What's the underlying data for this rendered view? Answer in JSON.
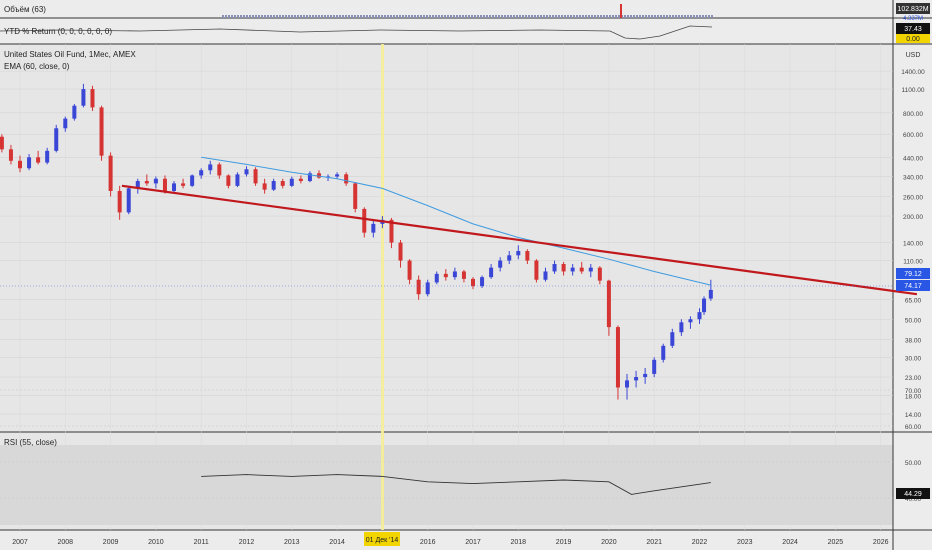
{
  "volume_pane": {
    "title": "Объём (63)",
    "value_label": "102.832M",
    "value_label_2": "4.337M"
  },
  "ytd_pane": {
    "title": "YTD % Return (0, 0, 0, 0, 0, 0)",
    "value_label": "37.43",
    "zero_label": "0.00"
  },
  "main_pane": {
    "title": "United States Oil Fund, 1Мес, AMEX",
    "indicator_label": "EMA (60, close, 0)",
    "currency": "USD",
    "price_label_ema": "79.12",
    "price_label_last": "74.17"
  },
  "rsi_pane": {
    "title": "RSI (55, close)",
    "value_label": "44.29"
  },
  "crosshair": {
    "date_label": "01 Дек '14"
  },
  "colors": {
    "up": "#3a46d6",
    "down": "#d63333",
    "trendline": "#c0181d",
    "ema": "#3f9be0",
    "rsi_line": "#333333",
    "highlight": "#fff59a",
    "badge_dark": "#111111",
    "badge_blue": "#2a56e6"
  },
  "chart_data": {
    "type": "candlestick",
    "xlabel": "",
    "ylabel": "USD",
    "y_scale": "log",
    "ylim": [
      11,
      1500
    ],
    "x_ticks": [
      "2007",
      "2008",
      "2009",
      "2010",
      "2011",
      "2012",
      "2013",
      "2014",
      "2016",
      "2017",
      "2018",
      "2019",
      "2020",
      "2021",
      "2022",
      "2023",
      "2024",
      "2025",
      "2026"
    ],
    "y_ticks": [
      "1400.00",
      "1100.00",
      "800.00",
      "600.00",
      "440.00",
      "340.00",
      "260.00",
      "200.00",
      "140.00",
      "110.00",
      "65.00",
      "50.00",
      "38.00",
      "30.00",
      "23.00",
      "18.00",
      "14.00"
    ],
    "rsi_ticks": [
      "70.00",
      "60.00",
      "50.00",
      "40.00"
    ],
    "series": [
      {
        "name": "EMA (60, close, 0)",
        "kind": "line",
        "x": [
          2011.0,
          2012.0,
          2013.0,
          2014.0,
          2015.0,
          2016.0,
          2017.0,
          2018.0,
          2019.0,
          2020.0,
          2021.0,
          2022.25
        ],
        "y": [
          440,
          400,
          360,
          330,
          290,
          230,
          180,
          150,
          130,
          112,
          95,
          79.12
        ]
      },
      {
        "name": "Trendline",
        "kind": "line",
        "x": [
          2009.25,
          2026.8
        ],
        "y": [
          300,
          70
        ]
      },
      {
        "name": "RSI (55, close)",
        "kind": "line",
        "x": [
          2011.0,
          2012.0,
          2013.0,
          2014.0,
          2015.0,
          2016.0,
          2017.0,
          2018.0,
          2019.0,
          2020.0,
          2020.5,
          2021.0,
          2022.25
        ],
        "y": [
          46,
          46.5,
          46,
          46.5,
          46,
          44.5,
          44,
          44.5,
          45,
          44.5,
          41,
          42,
          44.29
        ]
      }
    ],
    "candles": [
      {
        "t": 2006.4,
        "o": 660,
        "h": 700,
        "l": 560,
        "c": 580
      },
      {
        "t": 2006.6,
        "o": 580,
        "h": 600,
        "l": 470,
        "c": 490
      },
      {
        "t": 2006.8,
        "o": 490,
        "h": 520,
        "l": 400,
        "c": 420
      },
      {
        "t": 2007.0,
        "o": 420,
        "h": 450,
        "l": 360,
        "c": 380
      },
      {
        "t": 2007.2,
        "o": 380,
        "h": 460,
        "l": 370,
        "c": 440
      },
      {
        "t": 2007.4,
        "o": 440,
        "h": 480,
        "l": 400,
        "c": 410
      },
      {
        "t": 2007.6,
        "o": 410,
        "h": 500,
        "l": 400,
        "c": 480
      },
      {
        "t": 2007.8,
        "o": 480,
        "h": 680,
        "l": 470,
        "c": 650
      },
      {
        "t": 2008.0,
        "o": 650,
        "h": 760,
        "l": 620,
        "c": 740
      },
      {
        "t": 2008.2,
        "o": 740,
        "h": 900,
        "l": 720,
        "c": 880
      },
      {
        "t": 2008.4,
        "o": 880,
        "h": 1180,
        "l": 860,
        "c": 1100
      },
      {
        "t": 2008.6,
        "o": 1100,
        "h": 1150,
        "l": 820,
        "c": 860
      },
      {
        "t": 2008.8,
        "o": 860,
        "h": 880,
        "l": 420,
        "c": 450
      },
      {
        "t": 2009.0,
        "o": 450,
        "h": 470,
        "l": 260,
        "c": 280
      },
      {
        "t": 2009.2,
        "o": 280,
        "h": 300,
        "l": 190,
        "c": 210
      },
      {
        "t": 2009.4,
        "o": 210,
        "h": 300,
        "l": 205,
        "c": 290
      },
      {
        "t": 2009.6,
        "o": 290,
        "h": 330,
        "l": 270,
        "c": 320
      },
      {
        "t": 2009.8,
        "o": 320,
        "h": 350,
        "l": 300,
        "c": 310
      },
      {
        "t": 2010.0,
        "o": 310,
        "h": 340,
        "l": 290,
        "c": 330
      },
      {
        "t": 2010.2,
        "o": 330,
        "h": 345,
        "l": 270,
        "c": 280
      },
      {
        "t": 2010.4,
        "o": 280,
        "h": 320,
        "l": 270,
        "c": 310
      },
      {
        "t": 2010.6,
        "o": 310,
        "h": 330,
        "l": 290,
        "c": 300
      },
      {
        "t": 2010.8,
        "o": 300,
        "h": 350,
        "l": 295,
        "c": 345
      },
      {
        "t": 2011.0,
        "o": 345,
        "h": 380,
        "l": 330,
        "c": 370
      },
      {
        "t": 2011.2,
        "o": 370,
        "h": 420,
        "l": 350,
        "c": 400
      },
      {
        "t": 2011.4,
        "o": 400,
        "h": 410,
        "l": 330,
        "c": 345
      },
      {
        "t": 2011.6,
        "o": 345,
        "h": 350,
        "l": 290,
        "c": 300
      },
      {
        "t": 2011.8,
        "o": 300,
        "h": 360,
        "l": 295,
        "c": 350
      },
      {
        "t": 2012.0,
        "o": 350,
        "h": 390,
        "l": 340,
        "c": 375
      },
      {
        "t": 2012.2,
        "o": 375,
        "h": 385,
        "l": 300,
        "c": 310
      },
      {
        "t": 2012.4,
        "o": 310,
        "h": 330,
        "l": 270,
        "c": 285
      },
      {
        "t": 2012.6,
        "o": 285,
        "h": 330,
        "l": 280,
        "c": 320
      },
      {
        "t": 2012.8,
        "o": 320,
        "h": 330,
        "l": 290,
        "c": 300
      },
      {
        "t": 2013.0,
        "o": 300,
        "h": 340,
        "l": 295,
        "c": 330
      },
      {
        "t": 2013.2,
        "o": 330,
        "h": 345,
        "l": 310,
        "c": 320
      },
      {
        "t": 2013.4,
        "o": 320,
        "h": 365,
        "l": 315,
        "c": 355
      },
      {
        "t": 2013.6,
        "o": 355,
        "h": 370,
        "l": 330,
        "c": 335
      },
      {
        "t": 2013.8,
        "o": 335,
        "h": 350,
        "l": 320,
        "c": 340
      },
      {
        "t": 2014.0,
        "o": 340,
        "h": 360,
        "l": 330,
        "c": 350
      },
      {
        "t": 2014.2,
        "o": 350,
        "h": 360,
        "l": 300,
        "c": 310
      },
      {
        "t": 2014.4,
        "o": 310,
        "h": 315,
        "l": 210,
        "c": 220
      },
      {
        "t": 2014.6,
        "o": 220,
        "h": 225,
        "l": 150,
        "c": 160
      },
      {
        "t": 2014.8,
        "o": 160,
        "h": 190,
        "l": 150,
        "c": 180
      },
      {
        "t": 2015.0,
        "o": 180,
        "h": 200,
        "l": 170,
        "c": 190
      },
      {
        "t": 2015.2,
        "o": 190,
        "h": 195,
        "l": 130,
        "c": 140
      },
      {
        "t": 2015.4,
        "o": 140,
        "h": 145,
        "l": 100,
        "c": 110
      },
      {
        "t": 2015.6,
        "o": 110,
        "h": 112,
        "l": 80,
        "c": 85
      },
      {
        "t": 2015.8,
        "o": 85,
        "h": 90,
        "l": 65,
        "c": 70
      },
      {
        "t": 2016.0,
        "o": 70,
        "h": 85,
        "l": 68,
        "c": 82
      },
      {
        "t": 2016.2,
        "o": 82,
        "h": 95,
        "l": 80,
        "c": 92
      },
      {
        "t": 2016.4,
        "o": 92,
        "h": 98,
        "l": 84,
        "c": 88
      },
      {
        "t": 2016.6,
        "o": 88,
        "h": 100,
        "l": 85,
        "c": 95
      },
      {
        "t": 2016.8,
        "o": 95,
        "h": 97,
        "l": 82,
        "c": 86
      },
      {
        "t": 2017.0,
        "o": 86,
        "h": 88,
        "l": 75,
        "c": 78
      },
      {
        "t": 2017.2,
        "o": 78,
        "h": 90,
        "l": 76,
        "c": 88
      },
      {
        "t": 2017.4,
        "o": 88,
        "h": 105,
        "l": 86,
        "c": 100
      },
      {
        "t": 2017.6,
        "o": 100,
        "h": 115,
        "l": 95,
        "c": 110
      },
      {
        "t": 2017.8,
        "o": 110,
        "h": 125,
        "l": 105,
        "c": 118
      },
      {
        "t": 2018.0,
        "o": 118,
        "h": 135,
        "l": 112,
        "c": 125
      },
      {
        "t": 2018.2,
        "o": 125,
        "h": 128,
        "l": 105,
        "c": 110
      },
      {
        "t": 2018.4,
        "o": 110,
        "h": 112,
        "l": 82,
        "c": 85
      },
      {
        "t": 2018.6,
        "o": 85,
        "h": 100,
        "l": 83,
        "c": 95
      },
      {
        "t": 2018.8,
        "o": 95,
        "h": 110,
        "l": 92,
        "c": 105
      },
      {
        "t": 2019.0,
        "o": 105,
        "h": 108,
        "l": 90,
        "c": 95
      },
      {
        "t": 2019.2,
        "o": 95,
        "h": 105,
        "l": 90,
        "c": 100
      },
      {
        "t": 2019.4,
        "o": 100,
        "h": 108,
        "l": 92,
        "c": 95
      },
      {
        "t": 2019.6,
        "o": 95,
        "h": 105,
        "l": 88,
        "c": 100
      },
      {
        "t": 2019.8,
        "o": 100,
        "h": 102,
        "l": 80,
        "c": 84
      },
      {
        "t": 2020.0,
        "o": 84,
        "h": 85,
        "l": 40,
        "c": 45
      },
      {
        "t": 2020.2,
        "o": 45,
        "h": 46,
        "l": 17,
        "c": 20
      },
      {
        "t": 2020.4,
        "o": 20,
        "h": 24,
        "l": 17,
        "c": 22
      },
      {
        "t": 2020.6,
        "o": 22,
        "h": 25,
        "l": 20,
        "c": 23
      },
      {
        "t": 2020.8,
        "o": 23,
        "h": 26,
        "l": 21,
        "c": 24
      },
      {
        "t": 2021.0,
        "o": 24,
        "h": 30,
        "l": 23,
        "c": 29
      },
      {
        "t": 2021.2,
        "o": 29,
        "h": 36,
        "l": 28,
        "c": 35
      },
      {
        "t": 2021.4,
        "o": 35,
        "h": 44,
        "l": 34,
        "c": 42
      },
      {
        "t": 2021.6,
        "o": 42,
        "h": 50,
        "l": 40,
        "c": 48
      },
      {
        "t": 2021.8,
        "o": 48,
        "h": 52,
        "l": 44,
        "c": 50
      },
      {
        "t": 2022.0,
        "o": 50,
        "h": 58,
        "l": 47,
        "c": 55
      },
      {
        "t": 2022.1,
        "o": 55,
        "h": 68,
        "l": 53,
        "c": 66
      },
      {
        "t": 2022.25,
        "o": 66,
        "h": 85,
        "l": 64,
        "c": 74.17
      }
    ]
  }
}
